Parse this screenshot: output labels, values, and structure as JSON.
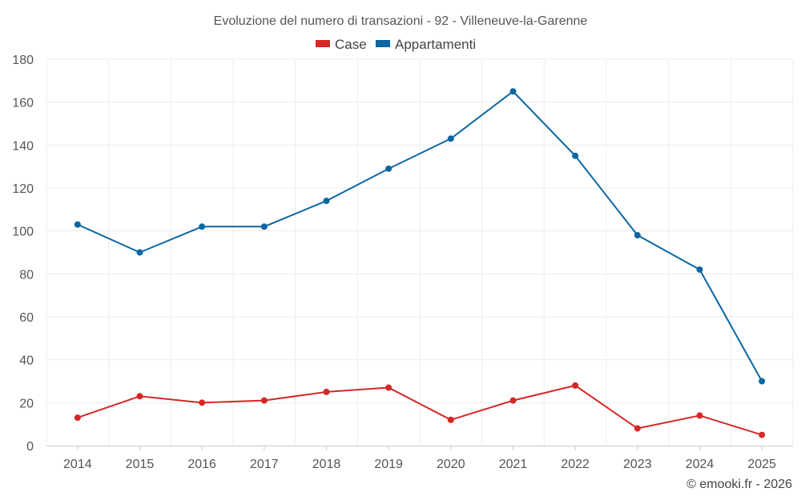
{
  "chart_data": {
    "type": "line",
    "title": "Evoluzione del numero di transazioni - 92 - Villeneuve-la-Garenne",
    "categories": [
      "2014",
      "2015",
      "2016",
      "2017",
      "2018",
      "2019",
      "2020",
      "2021",
      "2022",
      "2023",
      "2024",
      "2025"
    ],
    "series": [
      {
        "name": "Case",
        "color": "#d62728",
        "values": [
          13,
          23,
          20,
          21,
          25,
          27,
          12,
          21,
          28,
          8,
          14,
          5
        ]
      },
      {
        "name": "Appartamenti",
        "color": "#0a67a3",
        "values": [
          103,
          90,
          102,
          102,
          114,
          129,
          143,
          165,
          135,
          98,
          82,
          30
        ]
      }
    ],
    "yticks": [
      "0",
      "20",
      "40",
      "60",
      "80",
      "100",
      "120",
      "140",
      "160",
      "180"
    ],
    "ylim": [
      0,
      180
    ],
    "xlabel": "",
    "ylabel": "",
    "grid": true,
    "legend": "top-center"
  },
  "credit": "© emooki.fr - 2026"
}
